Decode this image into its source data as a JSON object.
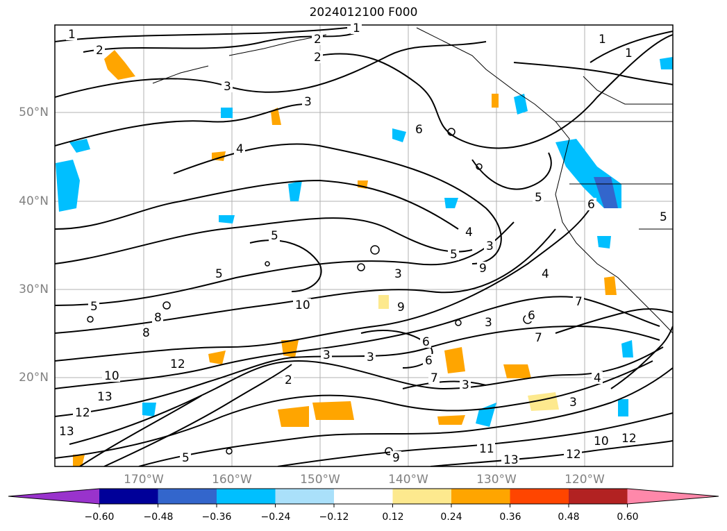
{
  "title": "2024012100 F000",
  "lat_labels": [
    "50°N",
    "40°N",
    "30°N",
    "20°N"
  ],
  "lon_labels": [
    "170°W",
    "160°W",
    "150°W",
    "140°W",
    "130°W",
    "120°W"
  ],
  "colorbar": {
    "colors": [
      "#9933cc",
      "#000099",
      "#3366cc",
      "#00bfff",
      "#aae0fa",
      "#ffffff",
      "#fde98e",
      "#ffa500",
      "#ff4500",
      "#b22222",
      "#ff88aa"
    ],
    "labels": [
      "−0.60",
      "−0.48",
      "−0.36",
      "−0.24",
      "−0.12",
      "0.12",
      "0.24",
      "0.36",
      "0.48",
      "0.60"
    ]
  },
  "contour_labels": [
    "1",
    "2",
    "2",
    "1",
    "1",
    "1",
    "2",
    "3",
    "3",
    "4",
    "5",
    "5",
    "5",
    "5",
    "4",
    "3",
    "3",
    "6",
    "9",
    "10",
    "8",
    "8",
    "12",
    "10",
    "13",
    "12",
    "13",
    "11",
    "13",
    "12",
    "10",
    "12",
    "3",
    "3",
    "9",
    "5",
    "7",
    "4",
    "7",
    "9",
    "6",
    "6",
    "3",
    "3",
    "3",
    "6",
    "7",
    "6",
    "4",
    "2",
    "5",
    "5"
  ],
  "icons": {
    "map": "map-icon"
  }
}
